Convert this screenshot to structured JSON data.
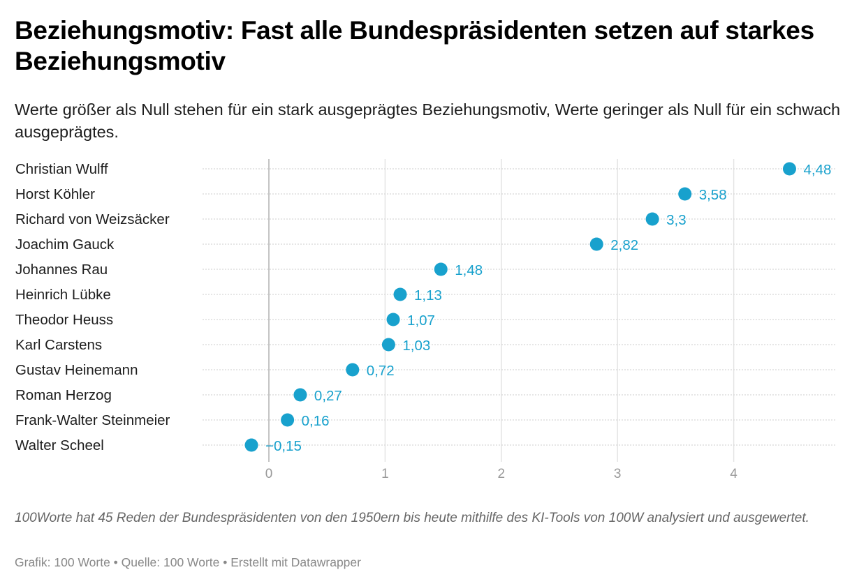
{
  "header": {
    "title": "Beziehungsmotiv: Fast alle Bundespräsidenten setzen auf starkes Beziehungsmotiv",
    "subtitle": "Werte größer als Null stehen für ein stark ausgeprägtes Beziehungsmotiv, Werte geringer als Null für ein schwach ausgeprägtes."
  },
  "footer": {
    "notes": "100Worte hat 45 Reden der Bundespräsidenten von den 1950ern bis heute mithilfe des KI-Tools von 100W analysiert und ausgewertet.",
    "byline": "Grafik: 100 Worte • Quelle: 100 Worte • Erstellt mit Datawrapper"
  },
  "colors": {
    "dot": "#18a1cd",
    "zero_line": "#c4c4c4",
    "grid": "#e4e4e4",
    "row_line": "#d8d8d8"
  },
  "chart_data": {
    "type": "scatter",
    "subtype": "dot-plot",
    "title": "Beziehungsmotiv: Fast alle Bundespräsidenten setzen auf starkes Beziehungsmotiv",
    "xlabel": "",
    "ylabel": "",
    "xlim": [
      -0.6,
      4.9
    ],
    "xticks": [
      0,
      1,
      2,
      3,
      4
    ],
    "xtick_labels": [
      "0",
      "1",
      "2",
      "3",
      "4"
    ],
    "grid": true,
    "legend": "none",
    "categories": [
      "Christian Wulff",
      "Horst Köhler",
      "Richard von Weizsäcker",
      "Joachim Gauck",
      "Johannes Rau",
      "Heinrich Lübke",
      "Theodor Heuss",
      "Karl Carstens",
      "Gustav Heinemann",
      "Roman Herzog",
      "Frank-Walter Steinmeier",
      "Walter Scheel"
    ],
    "values": [
      4.48,
      3.58,
      3.3,
      2.82,
      1.48,
      1.13,
      1.07,
      1.03,
      0.72,
      0.27,
      0.16,
      -0.15
    ],
    "value_labels": [
      "4,48",
      "3,58",
      "3,3",
      "2,82",
      "1,48",
      "1,13",
      "1,07",
      "1,03",
      "0,72",
      "0,27",
      "0,16",
      "−0,15"
    ]
  }
}
